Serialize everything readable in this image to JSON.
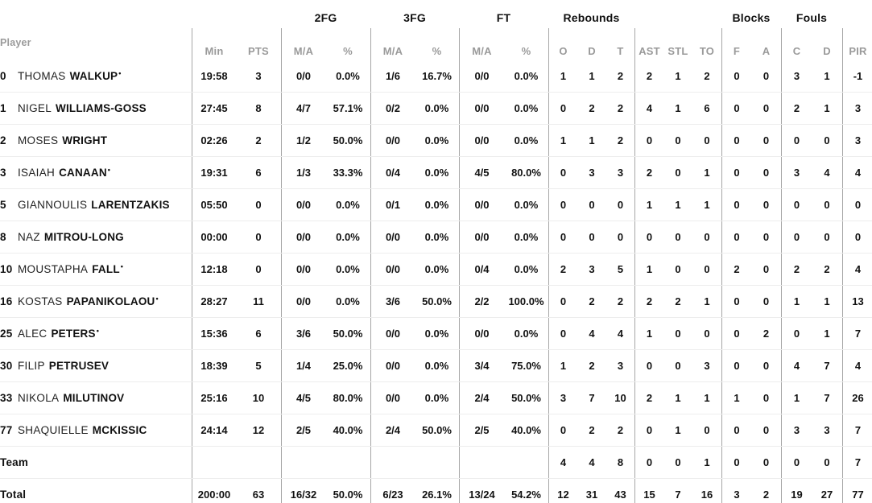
{
  "colors": {
    "text": "#111111",
    "muted": "#9a9a9a",
    "vline": "#a6a6a6",
    "hline": "#ededed",
    "bg": "#ffffff"
  },
  "table": {
    "group_headers": {
      "fg2": "2FG",
      "fg3": "3FG",
      "ft": "FT",
      "rebounds": "Rebounds",
      "blocks": "Blocks",
      "fouls": "Fouls"
    },
    "col_headers": {
      "player": "Player",
      "min": "Min",
      "pts": "PTS",
      "ma": "M/A",
      "pct": "%",
      "reb_o": "O",
      "reb_d": "D",
      "reb_t": "T",
      "ast": "AST",
      "stl": "STL",
      "to": "TO",
      "blk_f": "F",
      "blk_a": "A",
      "foul_c": "C",
      "foul_d": "D",
      "pir": "PIR"
    },
    "starter_mark": "•",
    "rows": [
      {
        "num": "0",
        "first": "THOMAS",
        "last": "WALKUP",
        "starter": true,
        "min": "19:58",
        "pts": "3",
        "fg2ma": "0/0",
        "fg2pct": "0.0%",
        "fg3ma": "1/6",
        "fg3pct": "16.7%",
        "ftma": "0/0",
        "ftpct": "0.0%",
        "ro": "1",
        "rd": "1",
        "rt": "2",
        "ast": "2",
        "stl": "1",
        "to": "2",
        "bf": "0",
        "ba": "0",
        "fc": "3",
        "fd": "1",
        "pir": "-1"
      },
      {
        "num": "1",
        "first": "NIGEL",
        "last": "WILLIAMS-GOSS",
        "starter": false,
        "min": "27:45",
        "pts": "8",
        "fg2ma": "4/7",
        "fg2pct": "57.1%",
        "fg3ma": "0/2",
        "fg3pct": "0.0%",
        "ftma": "0/0",
        "ftpct": "0.0%",
        "ro": "0",
        "rd": "2",
        "rt": "2",
        "ast": "4",
        "stl": "1",
        "to": "6",
        "bf": "0",
        "ba": "0",
        "fc": "2",
        "fd": "1",
        "pir": "3"
      },
      {
        "num": "2",
        "first": "MOSES",
        "last": "WRIGHT",
        "starter": false,
        "min": "02:26",
        "pts": "2",
        "fg2ma": "1/2",
        "fg2pct": "50.0%",
        "fg3ma": "0/0",
        "fg3pct": "0.0%",
        "ftma": "0/0",
        "ftpct": "0.0%",
        "ro": "1",
        "rd": "1",
        "rt": "2",
        "ast": "0",
        "stl": "0",
        "to": "0",
        "bf": "0",
        "ba": "0",
        "fc": "0",
        "fd": "0",
        "pir": "3"
      },
      {
        "num": "3",
        "first": "ISAIAH",
        "last": "CANAAN",
        "starter": true,
        "min": "19:31",
        "pts": "6",
        "fg2ma": "1/3",
        "fg2pct": "33.3%",
        "fg3ma": "0/4",
        "fg3pct": "0.0%",
        "ftma": "4/5",
        "ftpct": "80.0%",
        "ro": "0",
        "rd": "3",
        "rt": "3",
        "ast": "2",
        "stl": "0",
        "to": "1",
        "bf": "0",
        "ba": "0",
        "fc": "3",
        "fd": "4",
        "pir": "4"
      },
      {
        "num": "5",
        "first": "GIANNOULIS",
        "last": "LARENTZAKIS",
        "starter": false,
        "min": "05:50",
        "pts": "0",
        "fg2ma": "0/0",
        "fg2pct": "0.0%",
        "fg3ma": "0/1",
        "fg3pct": "0.0%",
        "ftma": "0/0",
        "ftpct": "0.0%",
        "ro": "0",
        "rd": "0",
        "rt": "0",
        "ast": "1",
        "stl": "1",
        "to": "1",
        "bf": "0",
        "ba": "0",
        "fc": "0",
        "fd": "0",
        "pir": "0"
      },
      {
        "num": "8",
        "first": "NAZ",
        "last": "MITROU-LONG",
        "starter": false,
        "min": "00:00",
        "pts": "0",
        "fg2ma": "0/0",
        "fg2pct": "0.0%",
        "fg3ma": "0/0",
        "fg3pct": "0.0%",
        "ftma": "0/0",
        "ftpct": "0.0%",
        "ro": "0",
        "rd": "0",
        "rt": "0",
        "ast": "0",
        "stl": "0",
        "to": "0",
        "bf": "0",
        "ba": "0",
        "fc": "0",
        "fd": "0",
        "pir": "0"
      },
      {
        "num": "10",
        "first": "MOUSTAPHA",
        "last": "FALL",
        "starter": true,
        "min": "12:18",
        "pts": "0",
        "fg2ma": "0/0",
        "fg2pct": "0.0%",
        "fg3ma": "0/0",
        "fg3pct": "0.0%",
        "ftma": "0/4",
        "ftpct": "0.0%",
        "ro": "2",
        "rd": "3",
        "rt": "5",
        "ast": "1",
        "stl": "0",
        "to": "0",
        "bf": "2",
        "ba": "0",
        "fc": "2",
        "fd": "2",
        "pir": "4"
      },
      {
        "num": "16",
        "first": "KOSTAS",
        "last": "PAPANIKOLAOU",
        "starter": true,
        "min": "28:27",
        "pts": "11",
        "fg2ma": "0/0",
        "fg2pct": "0.0%",
        "fg3ma": "3/6",
        "fg3pct": "50.0%",
        "ftma": "2/2",
        "ftpct": "100.0%",
        "ro": "0",
        "rd": "2",
        "rt": "2",
        "ast": "2",
        "stl": "2",
        "to": "1",
        "bf": "0",
        "ba": "0",
        "fc": "1",
        "fd": "1",
        "pir": "13"
      },
      {
        "num": "25",
        "first": "ALEC",
        "last": "PETERS",
        "starter": true,
        "min": "15:36",
        "pts": "6",
        "fg2ma": "3/6",
        "fg2pct": "50.0%",
        "fg3ma": "0/0",
        "fg3pct": "0.0%",
        "ftma": "0/0",
        "ftpct": "0.0%",
        "ro": "0",
        "rd": "4",
        "rt": "4",
        "ast": "1",
        "stl": "0",
        "to": "0",
        "bf": "0",
        "ba": "2",
        "fc": "0",
        "fd": "1",
        "pir": "7"
      },
      {
        "num": "30",
        "first": "FILIP",
        "last": "PETRUSEV",
        "starter": false,
        "min": "18:39",
        "pts": "5",
        "fg2ma": "1/4",
        "fg2pct": "25.0%",
        "fg3ma": "0/0",
        "fg3pct": "0.0%",
        "ftma": "3/4",
        "ftpct": "75.0%",
        "ro": "1",
        "rd": "2",
        "rt": "3",
        "ast": "0",
        "stl": "0",
        "to": "3",
        "bf": "0",
        "ba": "0",
        "fc": "4",
        "fd": "7",
        "pir": "4"
      },
      {
        "num": "33",
        "first": "NIKOLA",
        "last": "MILUTINOV",
        "starter": false,
        "min": "25:16",
        "pts": "10",
        "fg2ma": "4/5",
        "fg2pct": "80.0%",
        "fg3ma": "0/0",
        "fg3pct": "0.0%",
        "ftma": "2/4",
        "ftpct": "50.0%",
        "ro": "3",
        "rd": "7",
        "rt": "10",
        "ast": "2",
        "stl": "1",
        "to": "1",
        "bf": "1",
        "ba": "0",
        "fc": "1",
        "fd": "7",
        "pir": "26"
      },
      {
        "num": "77",
        "first": "SHAQUIELLE",
        "last": "MCKISSIC",
        "starter": false,
        "min": "24:14",
        "pts": "12",
        "fg2ma": "2/5",
        "fg2pct": "40.0%",
        "fg3ma": "2/4",
        "fg3pct": "50.0%",
        "ftma": "2/5",
        "ftpct": "40.0%",
        "ro": "0",
        "rd": "2",
        "rt": "2",
        "ast": "0",
        "stl": "1",
        "to": "0",
        "bf": "0",
        "ba": "0",
        "fc": "3",
        "fd": "3",
        "pir": "7"
      },
      {
        "num": "Team",
        "first": "",
        "last": "",
        "starter": false,
        "type": "team",
        "min": "",
        "pts": "",
        "fg2ma": "",
        "fg2pct": "",
        "fg3ma": "",
        "fg3pct": "",
        "ftma": "",
        "ftpct": "",
        "ro": "4",
        "rd": "4",
        "rt": "8",
        "ast": "0",
        "stl": "0",
        "to": "1",
        "bf": "0",
        "ba": "0",
        "fc": "0",
        "fd": "0",
        "pir": "7"
      },
      {
        "num": "Total",
        "first": "",
        "last": "",
        "starter": false,
        "type": "total",
        "min": "200:00",
        "pts": "63",
        "fg2ma": "16/32",
        "fg2pct": "50.0%",
        "fg3ma": "6/23",
        "fg3pct": "26.1%",
        "ftma": "13/24",
        "ftpct": "54.2%",
        "ro": "12",
        "rd": "31",
        "rt": "43",
        "ast": "15",
        "stl": "7",
        "to": "16",
        "bf": "3",
        "ba": "2",
        "fc": "19",
        "fd": "27",
        "pir": "77"
      }
    ]
  }
}
